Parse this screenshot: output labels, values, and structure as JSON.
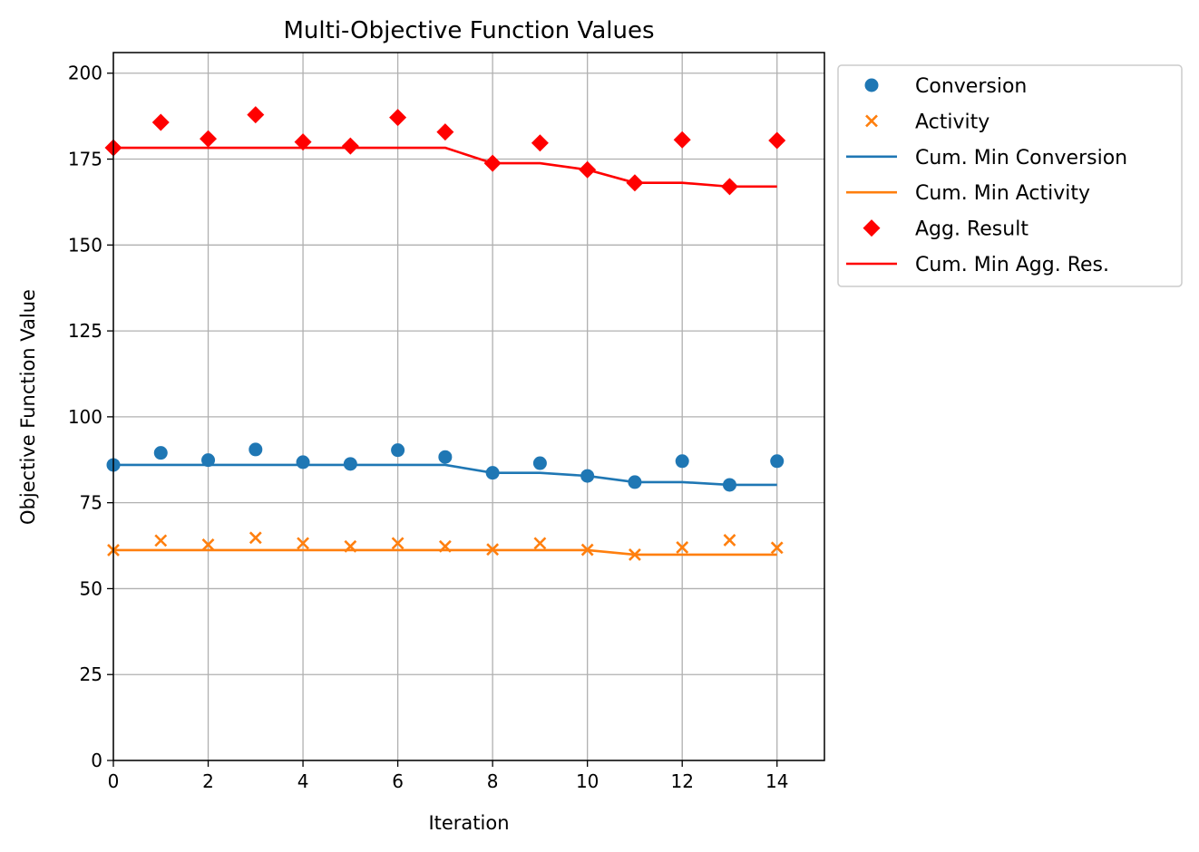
{
  "chart_data": {
    "type": "scatter",
    "title": "Multi-Objective Function Values",
    "xlabel": "Iteration",
    "ylabel": "Objective Function Value",
    "xlim": [
      0,
      15
    ],
    "ylim": [
      0,
      206
    ],
    "xticks": [
      0,
      2,
      4,
      6,
      8,
      10,
      12,
      14
    ],
    "yticks": [
      0,
      25,
      50,
      75,
      100,
      125,
      150,
      175,
      200
    ],
    "grid": true,
    "legend_position": "outside-top-right",
    "x": [
      0,
      1,
      2,
      3,
      4,
      5,
      6,
      7,
      8,
      9,
      10,
      11,
      12,
      13,
      14
    ],
    "series": [
      {
        "name": "Conversion",
        "kind": "scatter",
        "marker": "circle",
        "color": "#1f77b4",
        "values": [
          86.0,
          89.5,
          87.4,
          90.5,
          86.8,
          86.3,
          90.3,
          88.3,
          83.7,
          86.5,
          82.8,
          81.0,
          87.1,
          80.2,
          87.1
        ]
      },
      {
        "name": "Activity",
        "kind": "scatter",
        "marker": "x",
        "color": "#ff7f0e",
        "values": [
          61.2,
          64.0,
          62.8,
          64.8,
          63.2,
          62.3,
          63.2,
          62.3,
          61.4,
          63.2,
          61.3,
          59.9,
          62.0,
          64.1,
          61.9
        ]
      },
      {
        "name": "Cum. Min Conversion",
        "kind": "line",
        "color": "#1f77b4",
        "values": [
          86.0,
          86.0,
          86.0,
          86.0,
          86.0,
          86.0,
          86.0,
          86.0,
          83.7,
          83.7,
          82.8,
          81.0,
          81.0,
          80.2,
          80.2
        ]
      },
      {
        "name": "Cum. Min Activity",
        "kind": "line",
        "color": "#ff7f0e",
        "values": [
          61.2,
          61.2,
          61.2,
          61.2,
          61.2,
          61.2,
          61.2,
          61.2,
          61.2,
          61.2,
          61.2,
          59.9,
          59.9,
          59.9,
          59.9
        ]
      },
      {
        "name": "Agg. Result",
        "kind": "scatter",
        "marker": "diamond",
        "color": "#ff0000",
        "values": [
          178.3,
          185.7,
          180.9,
          187.9,
          180.0,
          178.8,
          187.1,
          182.9,
          173.8,
          179.7,
          171.9,
          168.1,
          180.6,
          167.0,
          180.4
        ]
      },
      {
        "name": "Cum. Min Agg. Res.",
        "kind": "line",
        "color": "#ff0000",
        "values": [
          178.3,
          178.3,
          178.3,
          178.3,
          178.3,
          178.3,
          178.3,
          178.3,
          173.8,
          173.8,
          171.9,
          168.1,
          168.1,
          167.0,
          167.0
        ]
      }
    ]
  }
}
